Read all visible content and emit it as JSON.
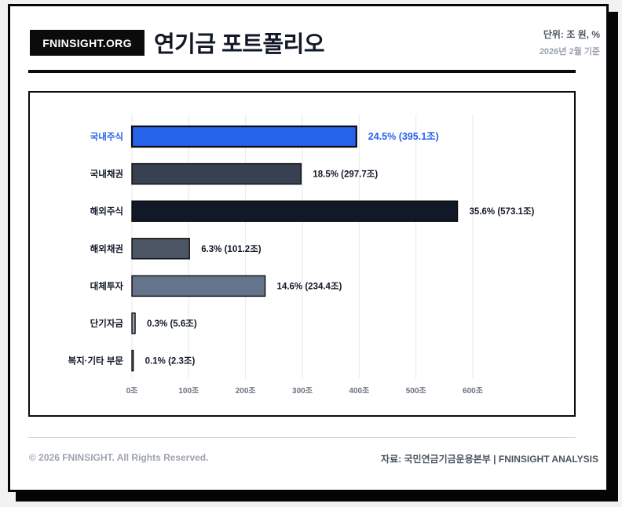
{
  "header": {
    "logo": "FNINSIGHT.ORG",
    "title": "연기금 포트폴리오",
    "unit": "단위: 조 원, %",
    "date": "2026년 2월 기준"
  },
  "footer": {
    "copyright": "© 2026 FNINSIGHT. All Rights Reserved.",
    "source": "자료: 국민연금기금운용본부 | FNINSIGHT ANALYSIS"
  },
  "chart_data": {
    "type": "bar",
    "orientation": "horizontal",
    "categories": [
      "국내주식",
      "국내채권",
      "해외주식",
      "해외채권",
      "대체투자",
      "단기자금",
      "복지·기타 부문"
    ],
    "values": [
      395.1,
      297.7,
      573.1,
      101.2,
      234.4,
      5.6,
      2.3
    ],
    "percents": [
      24.5,
      18.5,
      35.6,
      6.3,
      14.6,
      0.3,
      0.1
    ],
    "data_labels": [
      "24.5% (395.1조)",
      "18.5% (297.7조)",
      "35.6% (573.1조)",
      "6.3% (101.2조)",
      "14.6% (234.4조)",
      "0.3% (5.6조)",
      "0.1% (2.3조)"
    ],
    "x_ticks": [
      0,
      100,
      200,
      300,
      400,
      500,
      600
    ],
    "x_tick_labels": [
      "0조",
      "100조",
      "200조",
      "300조",
      "400조",
      "500조",
      "600조"
    ],
    "xlim": [
      0,
      600
    ],
    "grid": true,
    "highlight_index": 0,
    "colors": [
      "#2563eb",
      "#374151",
      "#111827",
      "#4b5563",
      "#64748b",
      "#94a3b8",
      "#cbd5e1"
    ],
    "highlight_color": "#2563eb",
    "label_color": "#111827"
  }
}
